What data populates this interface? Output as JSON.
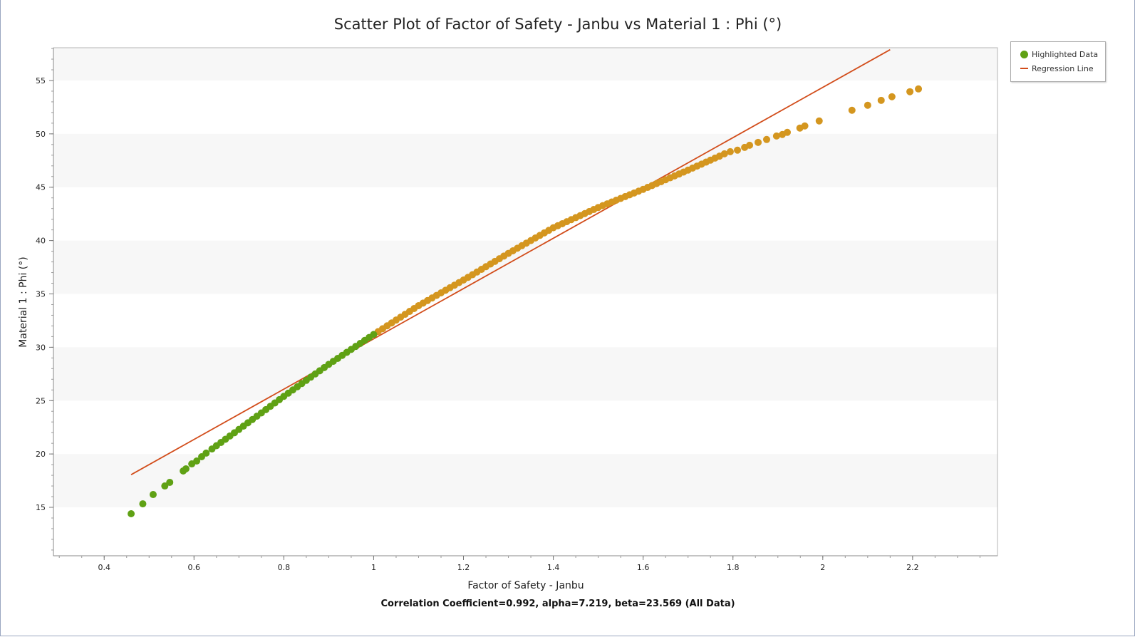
{
  "chart_data": {
    "type": "scatter",
    "title": "Scatter Plot of Factor of Safety - Janbu vs Material 1 : Phi (°)",
    "xlabel": "Factor of Safety - Janbu",
    "ylabel": "Material 1 : Phi (°)",
    "footer": "Correlation Coefficient=0.992, alpha=7.219, beta=23.569 (All Data)",
    "xlim": [
      0.287,
      2.389
    ],
    "ylim": [
      10.46,
      58.07
    ],
    "xticks": [
      0.4,
      0.6,
      0.8,
      1,
      1.2,
      1.4,
      1.6,
      1.8,
      2,
      2.2
    ],
    "xtick_labels": [
      "0.4",
      "0.6",
      "0.8",
      "1",
      "1.2",
      "1.4",
      "1.6",
      "1.8",
      "2",
      "2.2"
    ],
    "yticks": [
      15,
      20,
      25,
      30,
      35,
      40,
      45,
      50,
      55
    ],
    "ytick_labels": [
      "15",
      "20",
      "25",
      "30",
      "35",
      "40",
      "45",
      "50",
      "55"
    ],
    "grid": "alternating horizontal bands every 5",
    "legend_position": "top-right outside",
    "legend": [
      {
        "label": "Highlighted Data",
        "kind": "marker",
        "color": "#5fa114"
      },
      {
        "label": "Regression Line",
        "kind": "line",
        "color": "#d24d1b"
      }
    ],
    "series": [
      {
        "name": "Highlighted Data",
        "color": "#5fa114",
        "x": [
          0.46,
          0.486,
          0.509,
          0.535,
          0.546,
          0.576,
          0.582,
          0.595,
          0.606,
          0.617,
          0.627,
          0.64,
          0.65,
          0.66,
          0.67,
          0.68,
          0.69,
          0.7,
          0.71,
          0.72,
          0.73,
          0.74,
          0.75,
          0.76,
          0.77,
          0.78,
          0.79,
          0.8,
          0.81,
          0.82,
          0.83,
          0.84,
          0.85,
          0.86,
          0.87,
          0.88,
          0.89,
          0.9,
          0.91,
          0.92,
          0.93,
          0.94,
          0.95,
          0.96,
          0.97,
          0.98,
          0.99,
          1.0
        ],
        "y": [
          14.4,
          15.33,
          16.2,
          17.0,
          17.34,
          18.41,
          18.61,
          19.07,
          19.34,
          19.74,
          20.08,
          20.47,
          20.78,
          21.08,
          21.38,
          21.69,
          21.99,
          22.3,
          22.61,
          22.92,
          23.23,
          23.54,
          23.85,
          24.16,
          24.47,
          24.78,
          25.09,
          25.4,
          25.7,
          26.0,
          26.3,
          26.6,
          26.9,
          27.2,
          27.5,
          27.8,
          28.1,
          28.4,
          28.68,
          28.96,
          29.24,
          29.52,
          29.8,
          30.08,
          30.36,
          30.64,
          30.92,
          31.2
        ]
      },
      {
        "color": "#d4961f",
        "x": [
          1.01,
          1.02,
          1.03,
          1.04,
          1.05,
          1.06,
          1.07,
          1.08,
          1.09,
          1.1,
          1.11,
          1.12,
          1.13,
          1.14,
          1.15,
          1.16,
          1.17,
          1.18,
          1.19,
          1.2,
          1.21,
          1.22,
          1.23,
          1.24,
          1.25,
          1.26,
          1.27,
          1.28,
          1.29,
          1.3,
          1.31,
          1.32,
          1.33,
          1.34,
          1.35,
          1.36,
          1.37,
          1.38,
          1.39,
          1.4,
          1.41,
          1.42,
          1.43,
          1.44,
          1.45,
          1.46,
          1.47,
          1.48,
          1.49,
          1.5,
          1.51,
          1.52,
          1.53,
          1.54,
          1.55,
          1.56,
          1.57,
          1.58,
          1.59,
          1.6,
          1.61,
          1.62,
          1.63,
          1.64,
          1.65,
          1.66,
          1.67,
          1.68,
          1.69,
          1.7,
          1.71,
          1.72,
          1.73,
          1.74,
          1.75,
          1.76,
          1.77,
          1.781,
          1.794,
          1.81,
          1.826,
          1.837,
          1.856,
          1.875,
          1.897,
          1.91,
          1.921,
          1.949,
          1.96,
          1.992,
          2.065,
          2.1,
          2.13,
          2.154,
          2.194,
          2.213
        ],
        "y": [
          31.47,
          31.74,
          32.01,
          32.28,
          32.55,
          32.82,
          33.09,
          33.36,
          33.63,
          33.9,
          34.14,
          34.38,
          34.62,
          34.86,
          35.1,
          35.34,
          35.58,
          35.82,
          36.06,
          36.3,
          36.55,
          36.8,
          37.05,
          37.3,
          37.55,
          37.8,
          38.05,
          38.3,
          38.55,
          38.8,
          39.04,
          39.28,
          39.52,
          39.76,
          40.0,
          40.24,
          40.48,
          40.72,
          40.96,
          41.2,
          41.39,
          41.58,
          41.77,
          41.96,
          42.15,
          42.34,
          42.53,
          42.72,
          42.91,
          43.1,
          43.27,
          43.44,
          43.61,
          43.78,
          43.95,
          44.12,
          44.29,
          44.46,
          44.63,
          44.8,
          44.98,
          45.16,
          45.34,
          45.52,
          45.7,
          45.88,
          46.06,
          46.24,
          46.42,
          46.6,
          46.79,
          46.98,
          47.16,
          47.35,
          47.54,
          47.73,
          47.91,
          48.13,
          48.33,
          48.47,
          48.73,
          48.93,
          49.2,
          49.47,
          49.8,
          49.94,
          50.14,
          50.54,
          50.74,
          51.21,
          52.21,
          52.68,
          53.14,
          53.48,
          53.95,
          54.21
        ]
      }
    ],
    "regression": {
      "label": "Regression Line",
      "alpha": 7.219,
      "beta": 23.569,
      "x_range": [
        0.46,
        2.15
      ],
      "color": "#d24d1b"
    }
  }
}
